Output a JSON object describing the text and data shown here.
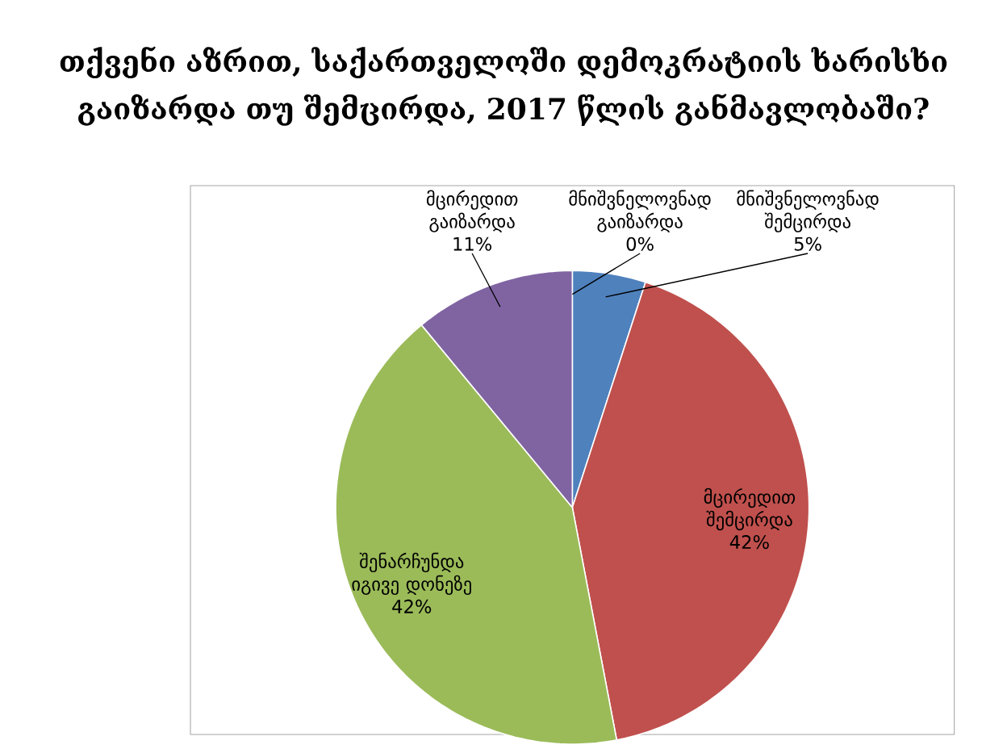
{
  "chart_data": {
    "type": "pie",
    "title": "თქვენი აზრით, საქართველოში დემოკრატიის ხარისხი გაიზარდა თუ შემცირდა, 2017 წლის განმავლობაში?",
    "categories": [
      "მნიშვნელოვნად შემცირდა",
      "მცირედით შემცირდა",
      "შენარჩუნდა იგივე დონეზე",
      "მცირედით გაიზარდა",
      "მნიშვნელოვნად გაიზარდა"
    ],
    "values": [
      5,
      42,
      42,
      11,
      0
    ],
    "value_labels": [
      "5%",
      "42%",
      "42%",
      "11%",
      "0%"
    ],
    "colors": [
      "#4f81bd",
      "#c0504d",
      "#9bbb59",
      "#8064a2",
      "#f79646"
    ]
  }
}
